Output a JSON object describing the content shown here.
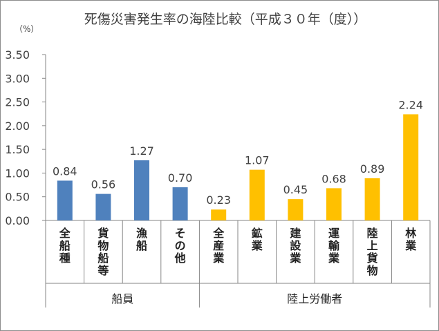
{
  "chart_data": {
    "type": "bar",
    "title": "死傷災害発生率の海陸比較（平成３０年（度））",
    "ylabel": "（%）",
    "ylim": [
      0,
      3.5
    ],
    "yticks": [
      "0.00",
      "0.50",
      "1.00",
      "1.50",
      "2.00",
      "2.50",
      "3.00",
      "3.50"
    ],
    "grid": false,
    "categories": [
      "全船種",
      "貨物船等",
      "漁船",
      "その他",
      "全産業",
      "鉱業",
      "建設業",
      "運輸業",
      "陸上貨物",
      "林業"
    ],
    "values": [
      0.84,
      0.56,
      1.27,
      0.7,
      0.23,
      1.07,
      0.45,
      0.68,
      0.89,
      2.24
    ],
    "value_labels": [
      "0.84",
      "0.56",
      "1.27",
      "0.70",
      "0.23",
      "1.07",
      "0.45",
      "0.68",
      "0.89",
      "2.24"
    ],
    "groups": [
      {
        "name": "船員",
        "count": 4,
        "color": "#4f81bd"
      },
      {
        "name": "陸上労働者",
        "count": 6,
        "color": "#ffc000"
      }
    ]
  }
}
